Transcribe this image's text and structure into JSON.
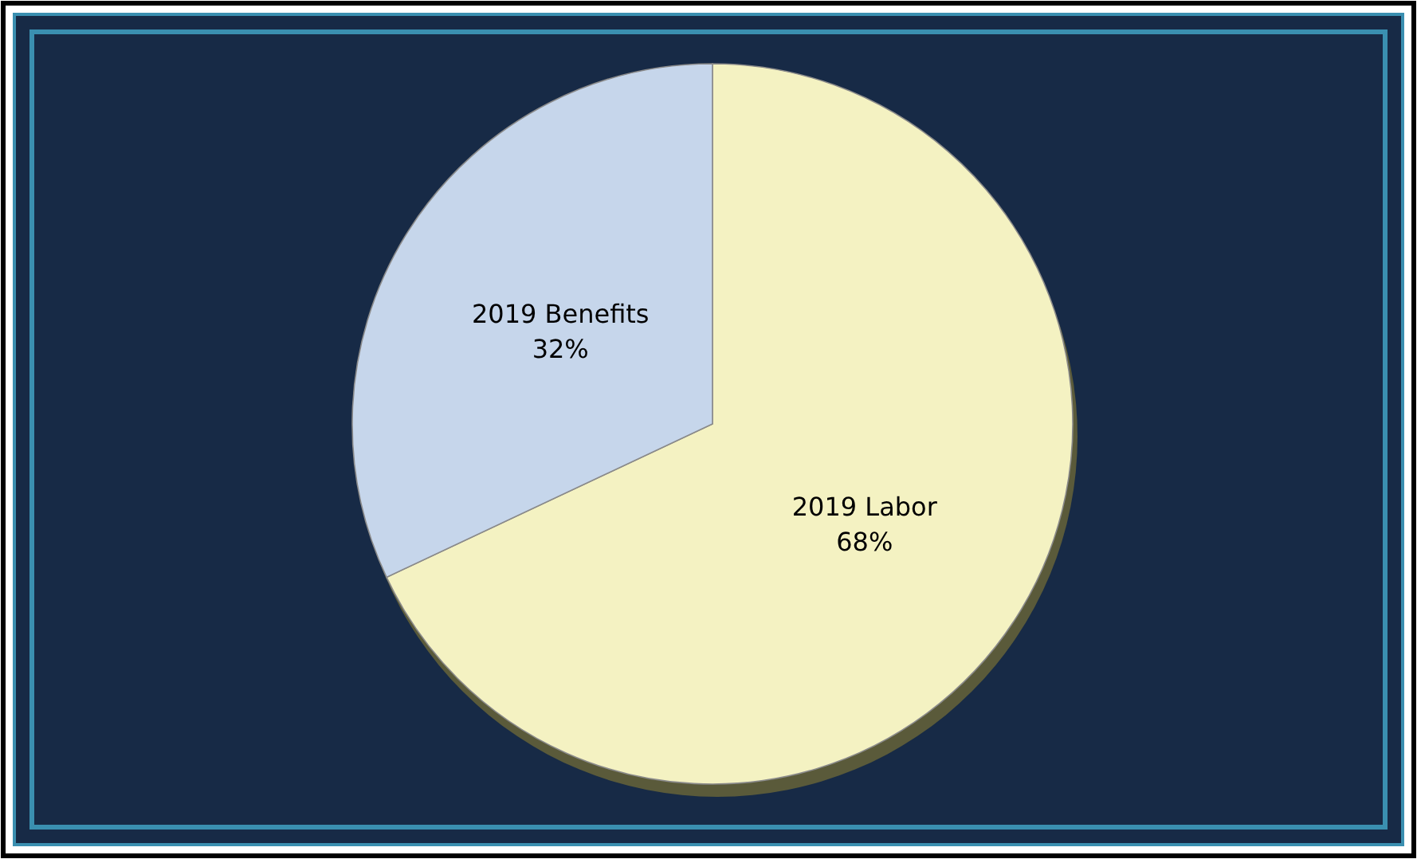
{
  "chart_data": {
    "type": "pie",
    "categories": [
      "2019 Labor",
      "2019 Benefits"
    ],
    "values": [
      68,
      32
    ],
    "colors": [
      "#f4f2c2",
      "#c6d6eb"
    ],
    "value_labels": [
      "68%",
      "32%"
    ]
  }
}
